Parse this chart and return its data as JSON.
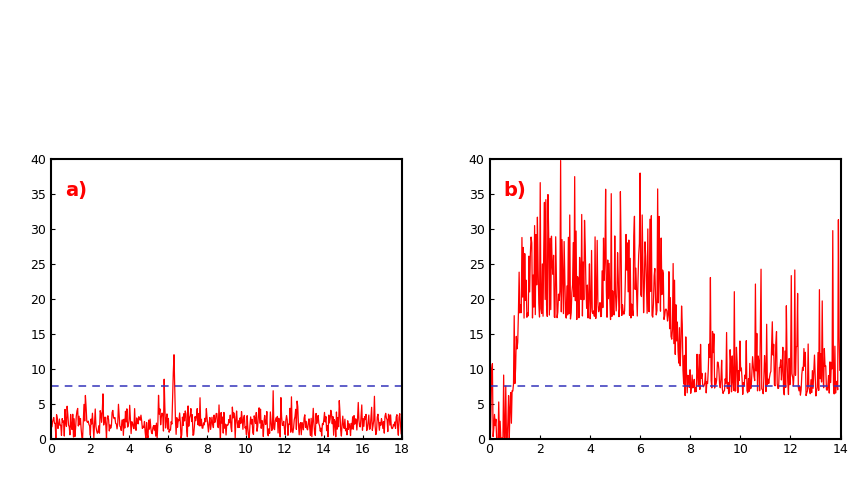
{
  "panel_a_label": "a)",
  "panel_b_label": "b)",
  "panel_a_xlim": [
    0,
    18
  ],
  "panel_b_xlim": [
    0,
    14
  ],
  "ylim": [
    0,
    40
  ],
  "yticks": [
    0,
    5,
    10,
    15,
    20,
    25,
    30,
    35,
    40
  ],
  "panel_a_xticks": [
    0,
    2,
    4,
    6,
    8,
    10,
    12,
    14,
    16,
    18
  ],
  "panel_b_xticks": [
    0,
    2,
    4,
    6,
    8,
    10,
    12,
    14
  ],
  "dashed_line_y": 7.5,
  "line_color": "#FF0000",
  "dashed_color": "#3333BB",
  "background_color": "#FFFFFF",
  "label_fontsize": 14,
  "tick_fontsize": 9
}
